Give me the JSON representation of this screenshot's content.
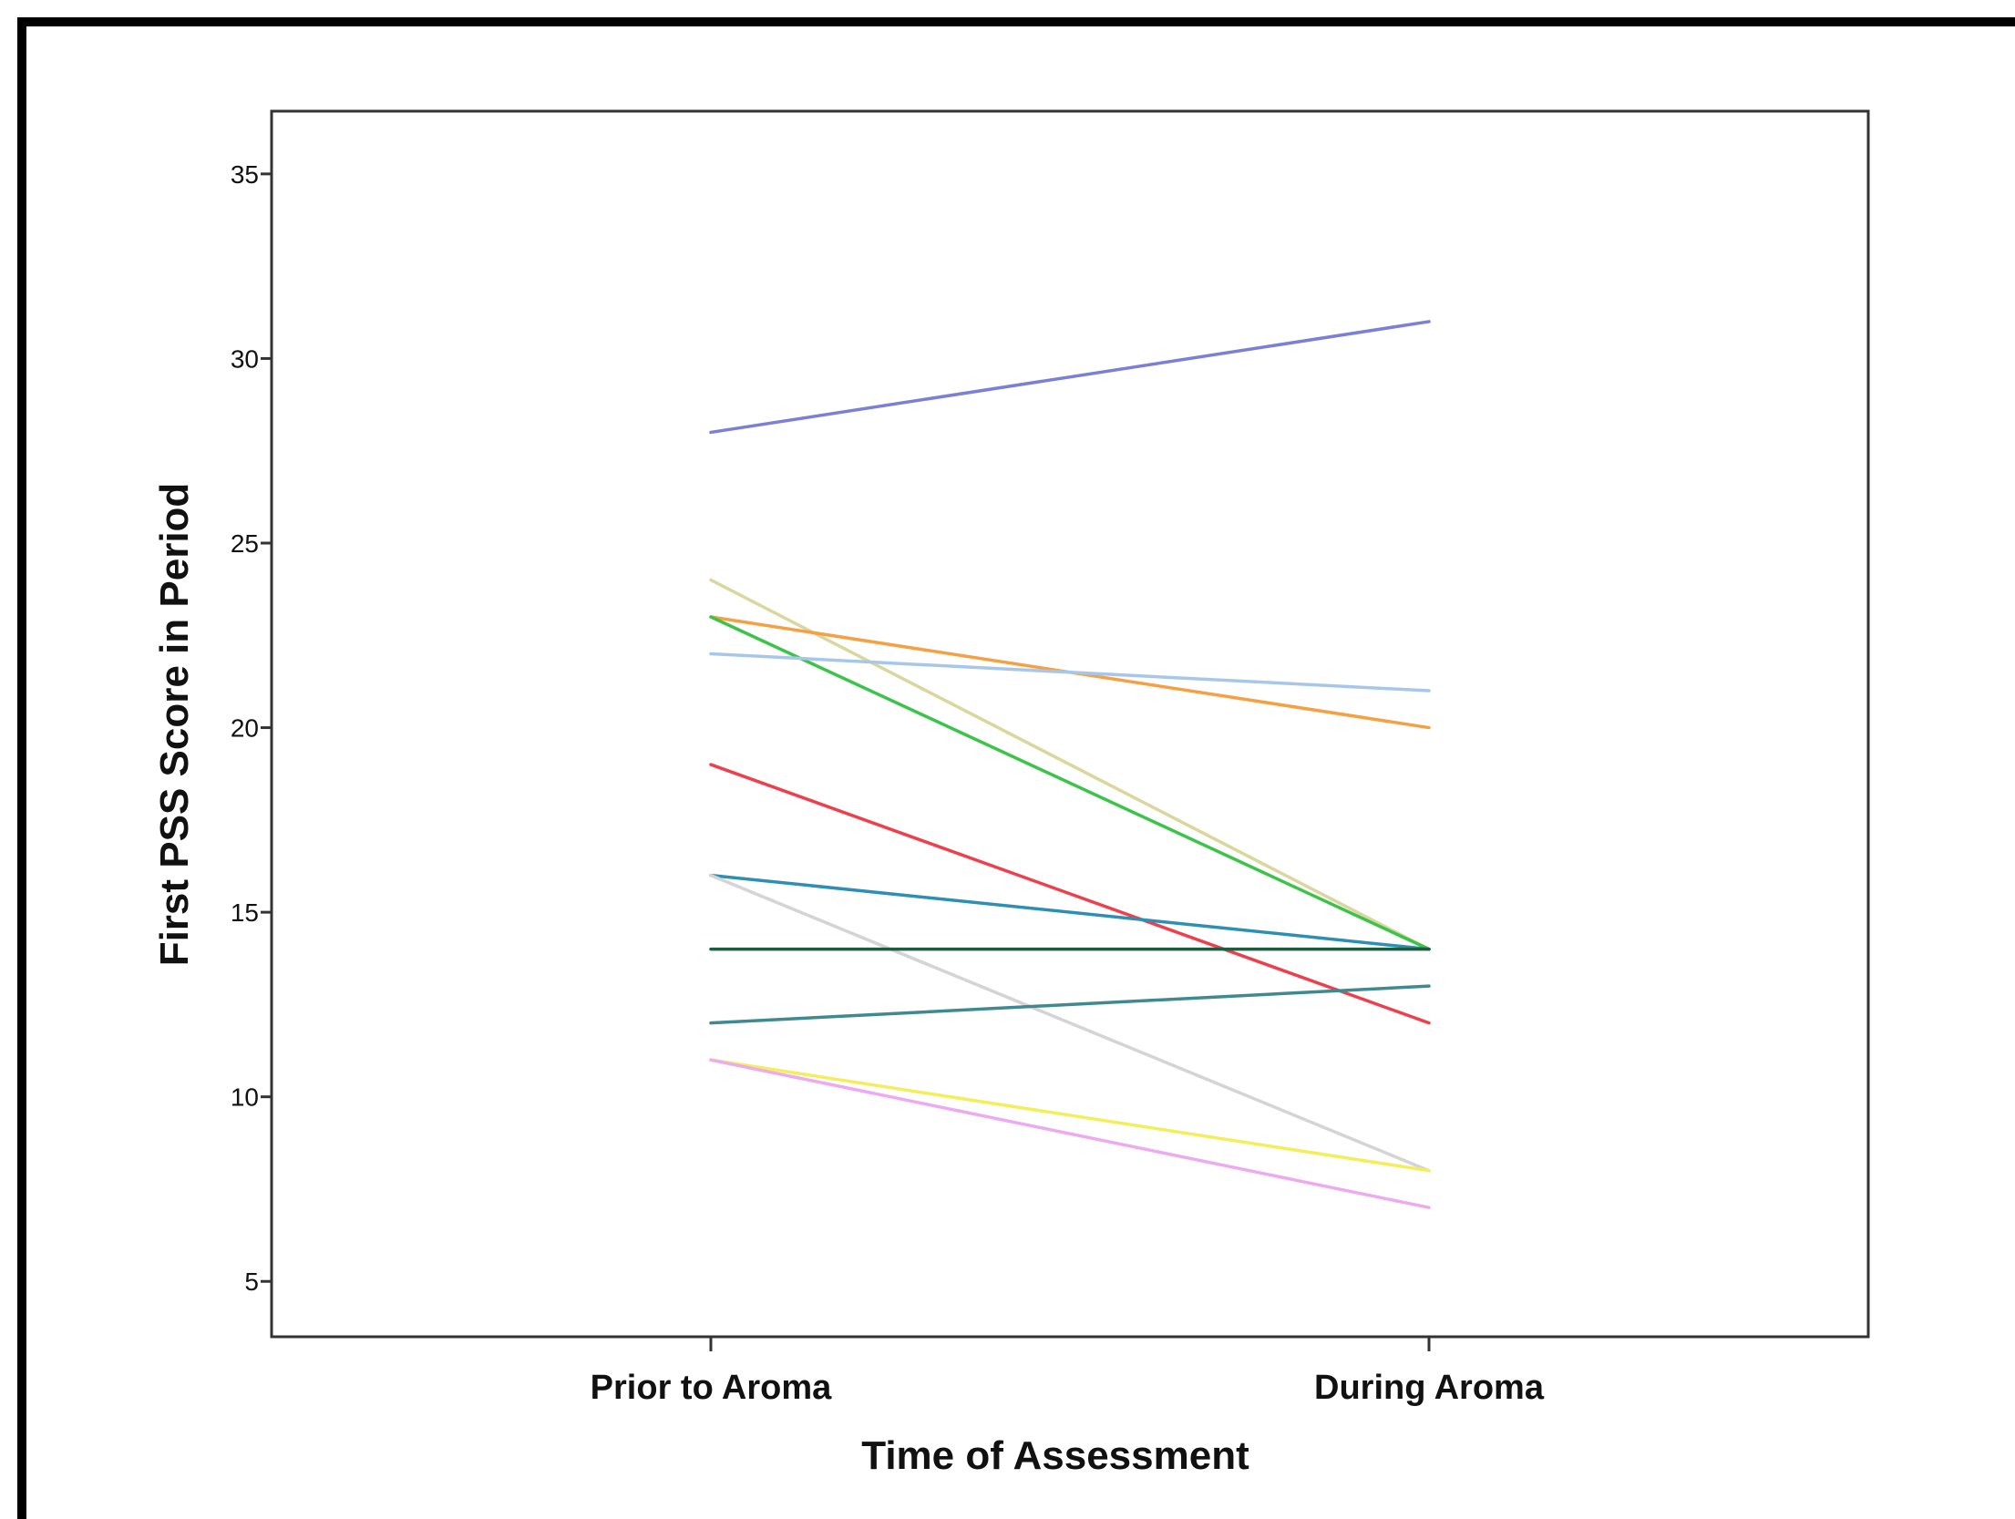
{
  "chart_data": {
    "type": "line",
    "xlabel": "Time of Assessment",
    "ylabel": "First PSS Score in Period",
    "categories": [
      "Prior to Aroma",
      "During Aroma"
    ],
    "ylim": [
      3.5,
      36.7
    ],
    "yticks": [
      5,
      10,
      15,
      20,
      25,
      30,
      35
    ],
    "grid": false,
    "legend": "none",
    "series": [
      {
        "values": [
          28,
          31
        ],
        "color": "#7b7fd6"
      },
      {
        "values": [
          24,
          14
        ],
        "color": "#d9d79e"
      },
      {
        "values": [
          23,
          20
        ],
        "color": "#f5a043"
      },
      {
        "values": [
          23,
          14
        ],
        "color": "#3cc44a"
      },
      {
        "values": [
          22,
          21
        ],
        "color": "#a7c7ea"
      },
      {
        "values": [
          19,
          12
        ],
        "color": "#ee3f4d"
      },
      {
        "values": [
          16,
          14
        ],
        "color": "#2e8fb5"
      },
      {
        "values": [
          16,
          8
        ],
        "color": "#d4d4d4"
      },
      {
        "values": [
          14,
          14
        ],
        "color": "#1d5c3e"
      },
      {
        "values": [
          12,
          13
        ],
        "color": "#3f8a90"
      },
      {
        "values": [
          11,
          8
        ],
        "color": "#f3ee5a"
      },
      {
        "values": [
          11,
          7
        ],
        "color": "#eeaaf0"
      }
    ]
  }
}
